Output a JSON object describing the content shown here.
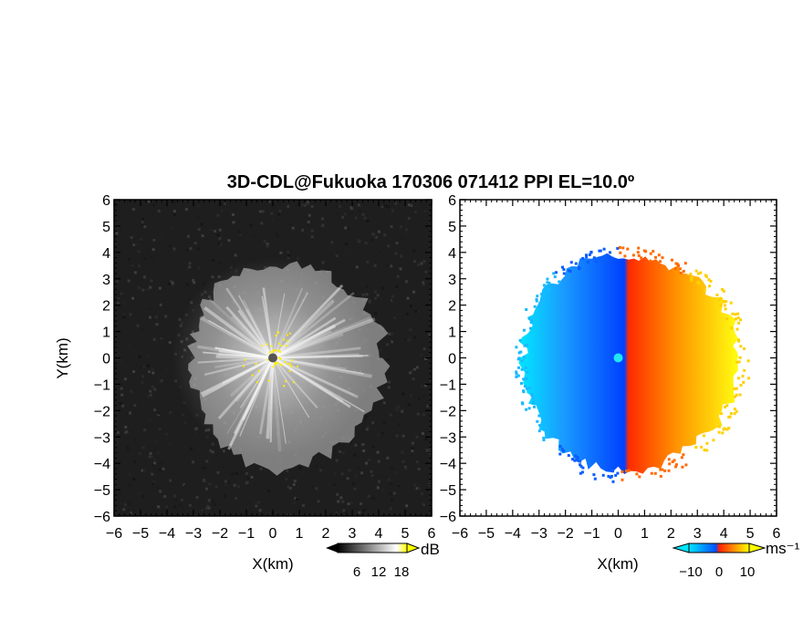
{
  "title": "3D-CDL@Fukuoka 170306 071412 PPI EL=10.0º",
  "chart_data": [
    {
      "type": "heatmap",
      "panel": "left",
      "quantity_unit": "dB",
      "xlabel": "X(km)",
      "ylabel": "Y(km)",
      "xlim": [
        -6,
        6
      ],
      "ylim": [
        -6,
        6
      ],
      "xticks": [
        "−6",
        "−5",
        "−4",
        "−3",
        "−2",
        "−1",
        "0",
        "1",
        "2",
        "3",
        "4",
        "5",
        "6"
      ],
      "yticks": [
        "6",
        "5",
        "4",
        "3",
        "2",
        "1",
        "0",
        "−1",
        "−2",
        "−3",
        "−4",
        "−5",
        "−6"
      ],
      "echo_extent_km": {
        "north": 3.8,
        "east": 4.5,
        "south": -4.5,
        "west": -3.3
      },
      "colorbar": {
        "label": "dB",
        "ticks": [
          "6",
          "12",
          "18"
        ],
        "colors": [
          "#000000",
          "#ffffff",
          "#ffff00"
        ]
      }
    },
    {
      "type": "heatmap",
      "panel": "right",
      "quantity_unit": "ms⁻¹",
      "xlabel": "X(km)",
      "xlim": [
        -6,
        6
      ],
      "ylim": [
        -6,
        6
      ],
      "xticks": [
        "−6",
        "−5",
        "−4",
        "−3",
        "−2",
        "−1",
        "0",
        "1",
        "2",
        "3",
        "4",
        "5",
        "6"
      ],
      "yticks": [
        "6",
        "5",
        "4",
        "3",
        "2",
        "1",
        "0",
        "−1",
        "−2",
        "−3",
        "−4",
        "−5",
        "−6"
      ],
      "echo_extent_km": {
        "north": 4.1,
        "east": 4.8,
        "south": -4.5,
        "west": -3.8
      },
      "colorbar": {
        "label": "ms⁻¹",
        "ticks": [
          "−10",
          "0",
          "10"
        ],
        "colors": [
          "#00e5ff",
          "#0050ff",
          "#ff2000",
          "#ffff00"
        ]
      }
    }
  ]
}
